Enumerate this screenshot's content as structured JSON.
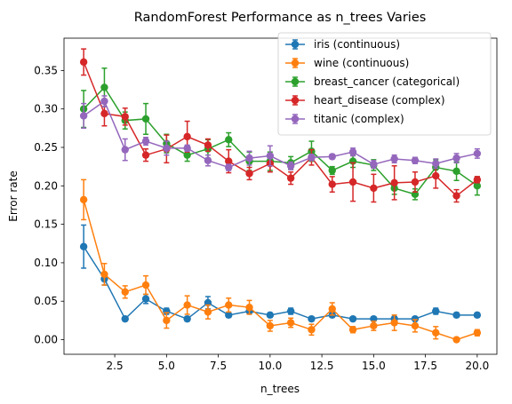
{
  "chart_data": {
    "type": "line",
    "title": "RandomForest Performance as n_trees Varies",
    "xlabel": "n_trees",
    "ylabel": "Error rate",
    "xlim": [
      0.05,
      20.95
    ],
    "ylim": [
      -0.019,
      0.392
    ],
    "xticks": [
      2.5,
      5.0,
      7.5,
      10.0,
      12.5,
      15.0,
      17.5,
      20.0
    ],
    "xtick_labels": [
      "2.5",
      "5.0",
      "7.5",
      "10.0",
      "12.5",
      "15.0",
      "17.5",
      "20.0"
    ],
    "yticks": [
      0.0,
      0.05,
      0.1,
      0.15,
      0.2,
      0.25,
      0.3,
      0.35
    ],
    "ytick_labels": [
      "0.00",
      "0.05",
      "0.10",
      "0.15",
      "0.20",
      "0.25",
      "0.30",
      "0.35"
    ],
    "grid": false,
    "legend_position": "top-right",
    "x": [
      1,
      2,
      3,
      4,
      5,
      6,
      7,
      8,
      9,
      10,
      11,
      12,
      13,
      14,
      15,
      16,
      17,
      18,
      19,
      20
    ],
    "series": [
      {
        "name": "iris (continuous)",
        "color": "#1f77b4",
        "values": [
          0.121,
          0.079,
          0.027,
          0.053,
          0.037,
          0.027,
          0.048,
          0.032,
          0.037,
          0.032,
          0.037,
          0.027,
          0.032,
          0.027,
          0.027,
          0.027,
          0.027,
          0.037,
          0.032,
          0.032
        ],
        "errors": [
          0.028,
          0.008,
          0.002,
          0.006,
          0.004,
          0.003,
          0.008,
          0.003,
          0.003,
          0.003,
          0.004,
          0.002,
          0.003,
          0.002,
          0.002,
          0.002,
          0.002,
          0.004,
          0.003,
          0.003
        ]
      },
      {
        "name": "wine (continuous)",
        "color": "#ff7f0e",
        "values": [
          0.182,
          0.085,
          0.062,
          0.071,
          0.025,
          0.045,
          0.036,
          0.045,
          0.042,
          0.018,
          0.022,
          0.013,
          0.04,
          0.013,
          0.018,
          0.022,
          0.018,
          0.009,
          0.0,
          0.009
        ],
        "errors": [
          0.026,
          0.014,
          0.008,
          0.012,
          0.01,
          0.012,
          0.009,
          0.009,
          0.009,
          0.007,
          0.006,
          0.007,
          0.008,
          0.004,
          0.006,
          0.01,
          0.008,
          0.008,
          0.002,
          0.004
        ]
      },
      {
        "name": "breast_cancer (categorical)",
        "color": "#2ca02c",
        "values": [
          0.3,
          0.328,
          0.285,
          0.287,
          0.255,
          0.24,
          0.248,
          0.26,
          0.232,
          0.232,
          0.23,
          0.245,
          0.22,
          0.232,
          0.227,
          0.197,
          0.189,
          0.224,
          0.219,
          0.2
        ],
        "errors": [
          0.024,
          0.025,
          0.011,
          0.02,
          0.012,
          0.008,
          0.012,
          0.009,
          0.012,
          0.012,
          0.008,
          0.013,
          0.005,
          0.008,
          0.007,
          0.008,
          0.007,
          0.01,
          0.012,
          0.012
        ]
      },
      {
        "name": "heart_disease (complex)",
        "color": "#d62728",
        "values": [
          0.361,
          0.294,
          0.29,
          0.24,
          0.248,
          0.264,
          0.253,
          0.232,
          0.216,
          0.229,
          0.21,
          0.237,
          0.202,
          0.205,
          0.197,
          0.204,
          0.205,
          0.213,
          0.187,
          0.208
        ],
        "errors": [
          0.017,
          0.016,
          0.011,
          0.008,
          0.018,
          0.02,
          0.008,
          0.015,
          0.008,
          0.011,
          0.008,
          0.01,
          0.01,
          0.025,
          0.018,
          0.022,
          0.013,
          0.016,
          0.008,
          0.004
        ]
      },
      {
        "name": "titanic (complex)",
        "color": "#9467bd",
        "values": [
          0.291,
          0.31,
          0.247,
          0.258,
          0.249,
          0.249,
          0.233,
          0.224,
          0.236,
          0.239,
          0.226,
          0.237,
          0.238,
          0.244,
          0.228,
          0.235,
          0.233,
          0.229,
          0.236,
          0.242
        ],
        "errors": [
          0.016,
          0.007,
          0.014,
          0.005,
          0.009,
          0.004,
          0.007,
          0.004,
          0.009,
          0.013,
          0.005,
          0.004,
          0.003,
          0.005,
          0.005,
          0.005,
          0.004,
          0.006,
          0.006,
          0.006
        ]
      }
    ]
  }
}
